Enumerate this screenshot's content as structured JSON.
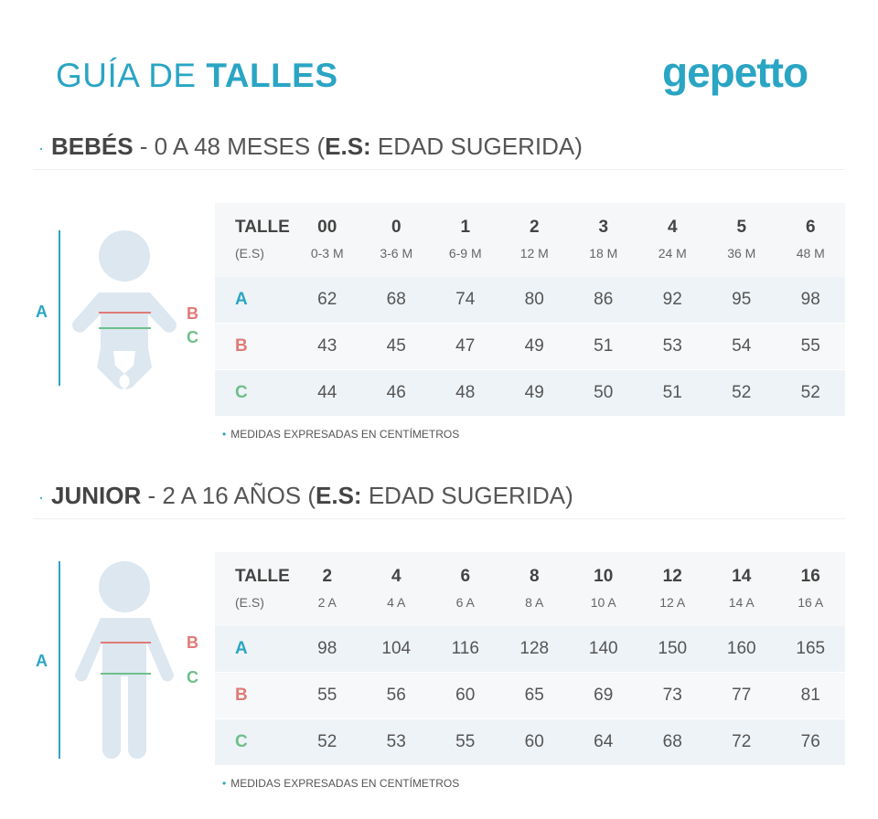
{
  "header": {
    "title_light": "GUÍA DE ",
    "title_bold": "TALLES",
    "logo": "gepetto"
  },
  "colors": {
    "accent": "#2aa5c4",
    "measure_a": "#2aa5c4",
    "measure_b": "#e07a76",
    "measure_c": "#6fbf8a",
    "figure": "#dce7f0"
  },
  "sections": [
    {
      "bullet": "·",
      "title_bold": "BEBÉS",
      "title_rest": " - 0 A 48 MESES (",
      "es_bold": "E.S:",
      "es_rest": " EDAD SUGERIDA)",
      "figure_labels": {
        "a": "A",
        "b": "B",
        "c": "C"
      },
      "table": {
        "header_label": "TALLE",
        "header_sub": "(E.S)",
        "sizes": [
          "00",
          "0",
          "1",
          "2",
          "3",
          "4",
          "5",
          "6"
        ],
        "ages": [
          "0-3 M",
          "3-6 M",
          "6-9 M",
          "12 M",
          "18 M",
          "24 M",
          "36 M",
          "48 M"
        ],
        "rows": [
          {
            "label": "A",
            "values": [
              "62",
              "68",
              "74",
              "80",
              "86",
              "92",
              "95",
              "98"
            ]
          },
          {
            "label": "B",
            "values": [
              "43",
              "45",
              "47",
              "49",
              "51",
              "53",
              "54",
              "55"
            ]
          },
          {
            "label": "C",
            "values": [
              "44",
              "46",
              "48",
              "49",
              "50",
              "51",
              "52",
              "52"
            ]
          }
        ]
      },
      "note": "MEDIDAS EXPRESADAS EN CENTÍMETROS"
    },
    {
      "bullet": "·",
      "title_bold": "JUNIOR",
      "title_rest": " - 2 A 16 AÑOS (",
      "es_bold": "E.S:",
      "es_rest": " EDAD SUGERIDA)",
      "figure_labels": {
        "a": "A",
        "b": "B",
        "c": "C"
      },
      "table": {
        "header_label": "TALLE",
        "header_sub": "(E.S)",
        "sizes": [
          "2",
          "4",
          "6",
          "8",
          "10",
          "12",
          "14",
          "16"
        ],
        "ages": [
          "2 A",
          "4 A",
          "6 A",
          "8 A",
          "10 A",
          "12 A",
          "14 A",
          "16 A"
        ],
        "rows": [
          {
            "label": "A",
            "values": [
              "98",
              "104",
              "116",
              "128",
              "140",
              "150",
              "160",
              "165"
            ]
          },
          {
            "label": "B",
            "values": [
              "55",
              "56",
              "60",
              "65",
              "69",
              "73",
              "77",
              "81"
            ]
          },
          {
            "label": "C",
            "values": [
              "52",
              "53",
              "55",
              "60",
              "64",
              "68",
              "72",
              "76"
            ]
          }
        ]
      },
      "note": "MEDIDAS EXPRESADAS EN CENTÍMETROS"
    }
  ]
}
